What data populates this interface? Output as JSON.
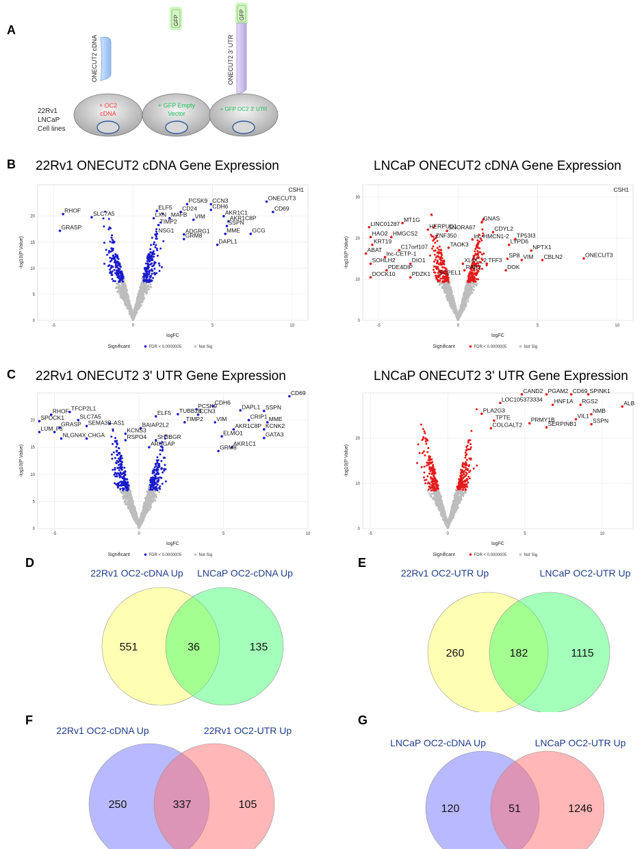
{
  "panels": {
    "A": "A",
    "B": "B",
    "C": "C",
    "D": "D",
    "E": "E",
    "F": "F",
    "G": "G"
  },
  "schematic": {
    "cdna_label": "ONECUT2 cDNA",
    "gfp": "GFP",
    "utr_label": "ONECUT2 3' UTR",
    "cell_lines": [
      "22Rv1",
      "LNCaP",
      "Cell lines"
    ],
    "cells": [
      {
        "line1": "+ OC2",
        "line2": "cDNA",
        "color": "#ff3b3b"
      },
      {
        "line1": "+ GFP Empty",
        "line2": "Vector",
        "color": "#1fbf5a"
      },
      {
        "line1": "+ GFP OC2 3' UTR",
        "line2": "",
        "color": "#1fbf5a"
      }
    ]
  },
  "chart_data": [
    {
      "id": "B-left",
      "type": "scatter",
      "title": "22Rv1 ONECUT2 cDNA Gene Expression",
      "xlabel": "logFC",
      "ylabel": "-log10(P Value)",
      "xlim": [
        -6,
        11
      ],
      "ylim": [
        0,
        26
      ],
      "xticks": [
        -5,
        0,
        5,
        10
      ],
      "yticks": [
        0,
        5,
        10,
        15,
        20
      ],
      "sig_color": "#1a1acc",
      "corner_label": "CSH1",
      "legend": {
        "title": "Significant",
        "sig": "FDR < 0.0000005",
        "ns": "Not Sig"
      },
      "labels": [
        {
          "t": "RHOF",
          "x": -4.4,
          "y": 20.4
        },
        {
          "t": "SLC7A5",
          "x": -2.6,
          "y": 19.8
        },
        {
          "t": "GRASP",
          "x": -4.6,
          "y": 17.2
        },
        {
          "t": "PCSK9",
          "x": 3.4,
          "y": 22.3
        },
        {
          "t": "CCN3",
          "x": 4.9,
          "y": 22.3
        },
        {
          "t": "CD24",
          "x": 3.0,
          "y": 20.8
        },
        {
          "t": "CDH6",
          "x": 4.9,
          "y": 21.2
        },
        {
          "t": "ELF5",
          "x": 1.5,
          "y": 21.0
        },
        {
          "t": "AKR1C1",
          "x": 5.7,
          "y": 20.0
        },
        {
          "t": "LXN",
          "x": 1.3,
          "y": 19.6
        },
        {
          "t": "MAFB",
          "x": 2.3,
          "y": 19.6
        },
        {
          "t": "VIM",
          "x": 3.8,
          "y": 19.3
        },
        {
          "t": "AKR1C8P",
          "x": 6.0,
          "y": 19.0
        },
        {
          "t": "TIMP2",
          "x": 1.6,
          "y": 18.3
        },
        {
          "t": "SSPN",
          "x": 5.9,
          "y": 18.1
        },
        {
          "t": "NSG1",
          "x": 1.5,
          "y": 16.6
        },
        {
          "t": "ADGRG1",
          "x": 3.2,
          "y": 16.5
        },
        {
          "t": "MME",
          "x": 5.8,
          "y": 16.6
        },
        {
          "t": "GCG",
          "x": 7.4,
          "y": 16.6
        },
        {
          "t": "GRM8",
          "x": 3.2,
          "y": 15.6
        },
        {
          "t": "DAPL1",
          "x": 5.3,
          "y": 14.5
        },
        {
          "t": "ONECUT3",
          "x": 8.4,
          "y": 22.8
        },
        {
          "t": "CD69",
          "x": 8.8,
          "y": 20.8
        }
      ]
    },
    {
      "id": "B-right",
      "type": "scatter",
      "title": "LNCaP ONECUT2 cDNA Gene Expression",
      "xlabel": "logFC",
      "ylabel": "-log10(P Value)",
      "xlim": [
        -6,
        11
      ],
      "ylim": [
        0,
        33
      ],
      "xticks": [
        -5,
        0,
        5,
        10
      ],
      "yticks": [
        0,
        10,
        20,
        30
      ],
      "sig_color": "#e61a1a",
      "corner_label": "CSH1",
      "legend": {
        "title": "Significant",
        "sig": "FDR < 0.0000005",
        "ns": "Not Sig"
      },
      "labels": [
        {
          "t": "MT1G",
          "x": -3.5,
          "y": 23.7
        },
        {
          "t": "GNAS",
          "x": 1.5,
          "y": 24.0
        },
        {
          "t": "LINC01287",
          "x": -5.6,
          "y": 22.7
        },
        {
          "t": "HERPUD1",
          "x": -1.9,
          "y": 22.1
        },
        {
          "t": "SNORA67",
          "x": -0.7,
          "y": 21.8
        },
        {
          "t": "CDYL2",
          "x": 2.2,
          "y": 21.5
        },
        {
          "t": "HAO2",
          "x": -5.5,
          "y": 20.3
        },
        {
          "t": "HMGCS2",
          "x": -4.2,
          "y": 20.3
        },
        {
          "t": "ZNF350",
          "x": -1.5,
          "y": 19.8
        },
        {
          "t": "lnc-HMCN1-2",
          "x": 0.9,
          "y": 19.7
        },
        {
          "t": "TP53I3",
          "x": 3.6,
          "y": 19.8
        },
        {
          "t": "KRT19",
          "x": -5.4,
          "y": 18.4
        },
        {
          "t": "TAOK3",
          "x": -0.6,
          "y": 17.7
        },
        {
          "t": "LYPD6",
          "x": 3.2,
          "y": 18.4
        },
        {
          "t": "C17orf107",
          "x": -3.7,
          "y": 17.1
        },
        {
          "t": "NPTX1",
          "x": 4.6,
          "y": 17.0
        },
        {
          "t": "ABAT",
          "x": -5.8,
          "y": 16.3
        },
        {
          "t": "lnc-CETP-1",
          "x": -4.6,
          "y": 15.4
        },
        {
          "t": "SP8",
          "x": 3.1,
          "y": 15.0
        },
        {
          "t": "VIM",
          "x": 4.0,
          "y": 14.7
        },
        {
          "t": "CBLN2",
          "x": 5.3,
          "y": 14.7
        },
        {
          "t": "ONECUT3",
          "x": 7.9,
          "y": 15.1
        },
        {
          "t": "SOHLH2",
          "x": -5.5,
          "y": 13.8
        },
        {
          "t": "DIO1",
          "x": -3.0,
          "y": 13.8
        },
        {
          "t": "XLOC_2",
          "x": 0.3,
          "y": 13.8
        },
        {
          "t": "TFF3",
          "x": 1.8,
          "y": 13.8
        },
        {
          "t": "PDE4DIP",
          "x": -4.5,
          "y": 12.2
        },
        {
          "t": "RAB2",
          "x": 0.4,
          "y": 12.2
        },
        {
          "t": "DOK",
          "x": 3.0,
          "y": 12.2
        },
        {
          "t": "DOCK10",
          "x": -5.5,
          "y": 10.5
        },
        {
          "t": "PDZK1",
          "x": -3.0,
          "y": 10.5
        },
        {
          "t": "SCPEL1",
          "x": -1.3,
          "y": 10.8
        }
      ]
    },
    {
      "id": "C-left",
      "type": "scatter",
      "title": "22Rv1 ONECUT2 3' UTR Gene Expression",
      "xlabel": "logFC",
      "ylabel": "-log10(P Value)",
      "xlim": [
        -6,
        10
      ],
      "ylim": [
        0,
        25
      ],
      "xticks": [
        -5,
        0,
        5,
        10
      ],
      "yticks": [
        0,
        5,
        10,
        15,
        20
      ],
      "sig_color": "#1a1acc",
      "corner_label": "",
      "legend": {
        "title": "Significant",
        "sig": "FDR < 0.0000005",
        "ns": "Not Sig"
      },
      "labels": [
        {
          "t": "RHOF",
          "x": -5.2,
          "y": 21.0
        },
        {
          "t": "TFCP2L1",
          "x": -4.1,
          "y": 21.5
        },
        {
          "t": "SPOCK1",
          "x": -5.9,
          "y": 19.8
        },
        {
          "t": "SLC7A5",
          "x": -3.6,
          "y": 20.0
        },
        {
          "t": "GRASP",
          "x": -4.7,
          "y": 18.6
        },
        {
          "t": "SEMA3B-AS1",
          "x": -3.1,
          "y": 18.9
        },
        {
          "t": "LUM",
          "x": -5.9,
          "y": 17.8
        },
        {
          "t": "F3",
          "x": -5.0,
          "y": 17.8
        },
        {
          "t": "NLGN4X",
          "x": -4.6,
          "y": 16.6
        },
        {
          "t": "CHGA",
          "x": -3.1,
          "y": 16.6
        },
        {
          "t": "PCSK9",
          "x": 3.4,
          "y": 22.0
        },
        {
          "t": "CDH6",
          "x": 4.4,
          "y": 22.6
        },
        {
          "t": "DAPL1",
          "x": 6.0,
          "y": 21.8
        },
        {
          "t": "SSPN",
          "x": 7.4,
          "y": 21.7
        },
        {
          "t": "CD69",
          "x": 8.9,
          "y": 24.4
        },
        {
          "t": "TUBB2B",
          "x": 2.3,
          "y": 21.1
        },
        {
          "t": "CCN3",
          "x": 3.5,
          "y": 21.0
        },
        {
          "t": "ELF5",
          "x": 1.0,
          "y": 20.7
        },
        {
          "t": "TIMP2",
          "x": 2.7,
          "y": 19.6
        },
        {
          "t": "VIM",
          "x": 4.5,
          "y": 19.6
        },
        {
          "t": "CRIP1",
          "x": 6.5,
          "y": 20.0
        },
        {
          "t": "MME",
          "x": 7.6,
          "y": 19.6
        },
        {
          "t": "BAIAP2L2",
          "x": 0.1,
          "y": 18.5
        },
        {
          "t": "AKR1C8P",
          "x": 5.6,
          "y": 18.3
        },
        {
          "t": "KCNK2",
          "x": 7.4,
          "y": 18.3
        },
        {
          "t": "KCNS3",
          "x": -0.8,
          "y": 17.5
        },
        {
          "t": "ELMO1",
          "x": 4.9,
          "y": 17.0
        },
        {
          "t": "GATA3",
          "x": 7.4,
          "y": 16.7
        },
        {
          "t": "RSPO4",
          "x": -0.8,
          "y": 16.3
        },
        {
          "t": "SH3BGR",
          "x": 1.0,
          "y": 16.3
        },
        {
          "t": "ARHGAP",
          "x": 0.6,
          "y": 15.0
        },
        {
          "t": "AKR1C1",
          "x": 5.5,
          "y": 15.0
        },
        {
          "t": "GRM8",
          "x": 4.7,
          "y": 14.3
        }
      ]
    },
    {
      "id": "C-right",
      "type": "scatter",
      "title": "LNCaP ONECUT2 3' UTR Gene Expression",
      "xlabel": "logFC",
      "ylabel": "-log10(P Value)",
      "xlim": [
        -5.5,
        12
      ],
      "ylim": [
        0,
        30
      ],
      "xticks": [
        -5,
        0,
        5,
        10
      ],
      "yticks": [
        0,
        10,
        20
      ],
      "sig_color": "#e61a1a",
      "corner_label": "",
      "legend": {
        "title": "Significant",
        "sig": "FDR < 0.0000005",
        "ns": "Not Sig"
      },
      "labels": [
        {
          "t": "CAND2",
          "x": 4.8,
          "y": 29.7
        },
        {
          "t": "PGAM2",
          "x": 6.4,
          "y": 29.7
        },
        {
          "t": "CD69",
          "x": 8.0,
          "y": 29.7
        },
        {
          "t": "SPINK1",
          "x": 9.1,
          "y": 29.7
        },
        {
          "t": "LOC105373334",
          "x": 3.4,
          "y": 27.8
        },
        {
          "t": "HNF1A",
          "x": 6.8,
          "y": 27.4
        },
        {
          "t": "RGS2",
          "x": 8.6,
          "y": 27.4
        },
        {
          "t": "ALB",
          "x": 11.3,
          "y": 27.0
        },
        {
          "t": "PLA2G3",
          "x": 2.2,
          "y": 25.4
        },
        {
          "t": "NMB",
          "x": 9.3,
          "y": 25.3
        },
        {
          "t": "VIL1",
          "x": 8.3,
          "y": 24.2
        },
        {
          "t": "TPTE",
          "x": 3.0,
          "y": 23.9
        },
        {
          "t": "PRMY1B",
          "x": 5.3,
          "y": 23.3
        },
        {
          "t": "SSPN",
          "x": 9.3,
          "y": 23.1
        },
        {
          "t": "SERPINB1",
          "x": 6.4,
          "y": 22.4
        },
        {
          "t": "COLGALT2",
          "x": 2.8,
          "y": 22.2
        }
      ]
    }
  ],
  "venns": {
    "D": {
      "left": "22Rv1 OC2-cDNA Up",
      "right": "LNCaP OC2-cDNA Up",
      "a": "551",
      "ab": "36",
      "b": "135"
    },
    "E": {
      "left": "22Rv1 OC2-UTR Up",
      "right": "LNCaP OC2-UTR Up",
      "a": "260",
      "ab": "182",
      "b": "1115"
    },
    "F": {
      "left": "22Rv1 OC2-cDNA Up",
      "right": "22Rv1 OC2-UTR Up",
      "a": "250",
      "ab": "337",
      "b": "105"
    },
    "G": {
      "left": "LNCaP OC2-cDNA Up",
      "right": "LNCaP OC2-UTR Up",
      "a": "120",
      "ab": "51",
      "b": "1246"
    }
  },
  "colors": {
    "yellow": "#ffff99",
    "green": "#66ff66",
    "blue": "#8080ff",
    "red": "#ff8080",
    "ns": "#bdbdbd"
  }
}
